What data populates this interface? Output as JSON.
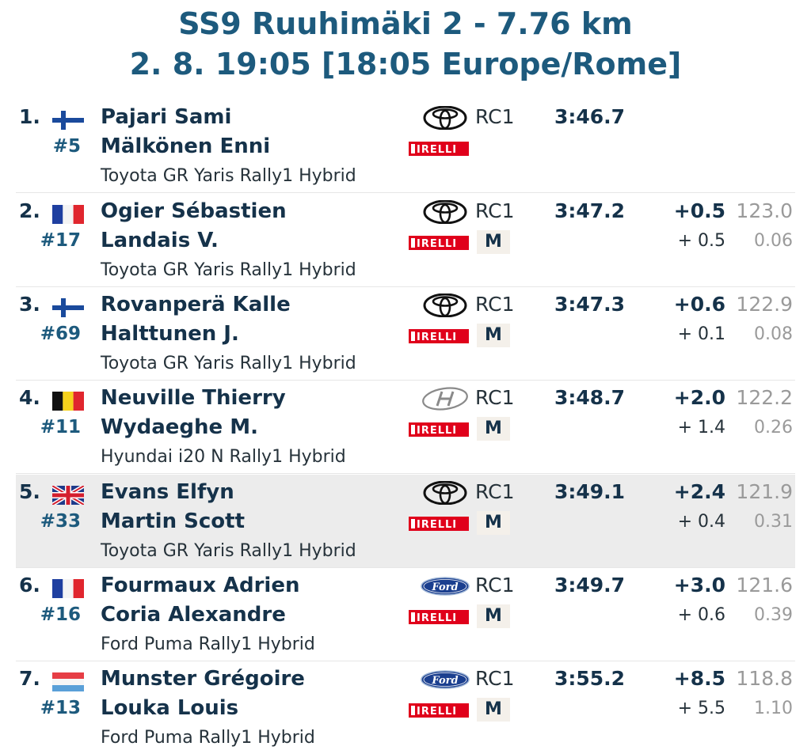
{
  "stage": {
    "title": "SS9 Ruuhimäki 2 - 7.76 km",
    "datetime": "2. 8. 19:05 [18:05 Europe/Rome]"
  },
  "brand_logos": {
    "pirelli_label": "IRELLI",
    "ford_label": "Ford"
  },
  "results": [
    {
      "pos": "1.",
      "num": "#5",
      "flag": "finland-flag",
      "driver": "Pajari Sami",
      "codriver": "Mälkönen Enni",
      "car": "Toyota GR Yaris Rally1 Hybrid",
      "make": "toyota",
      "class": "RC1",
      "tyre": "",
      "time": "3:46.7",
      "gap": "",
      "diff": "",
      "speed": "",
      "sec_per_km": ""
    },
    {
      "pos": "2.",
      "num": "#17",
      "flag": "france-flag",
      "driver": "Ogier Sébastien",
      "codriver": "Landais V.",
      "car": "Toyota GR Yaris Rally1 Hybrid",
      "make": "toyota",
      "class": "RC1",
      "tyre": "M",
      "time": "3:47.2",
      "gap": "+0.5",
      "diff": "+ 0.5",
      "speed": "123.0",
      "sec_per_km": "0.06"
    },
    {
      "pos": "3.",
      "num": "#69",
      "flag": "finland-flag",
      "driver": "Rovanperä Kalle",
      "codriver": "Halttunen J.",
      "car": "Toyota GR Yaris Rally1 Hybrid",
      "make": "toyota",
      "class": "RC1",
      "tyre": "M",
      "time": "3:47.3",
      "gap": "+0.6",
      "diff": "+ 0.1",
      "speed": "122.9",
      "sec_per_km": "0.08"
    },
    {
      "pos": "4.",
      "num": "#11",
      "flag": "belgium-flag",
      "driver": "Neuville Thierry",
      "codriver": "Wydaeghe M.",
      "car": "Hyundai i20 N Rally1 Hybrid",
      "make": "hyundai",
      "class": "RC1",
      "tyre": "M",
      "time": "3:48.7",
      "gap": "+2.0",
      "diff": "+ 1.4",
      "speed": "122.2",
      "sec_per_km": "0.26"
    },
    {
      "pos": "5.",
      "num": "#33",
      "flag": "uk-flag",
      "driver": "Evans Elfyn",
      "codriver": "Martin Scott",
      "car": "Toyota GR Yaris Rally1 Hybrid",
      "make": "toyota",
      "class": "RC1",
      "tyre": "M",
      "time": "3:49.1",
      "gap": "+2.4",
      "diff": "+ 0.4",
      "speed": "121.9",
      "sec_per_km": "0.31",
      "highlight": true
    },
    {
      "pos": "6.",
      "num": "#16",
      "flag": "france-flag",
      "driver": "Fourmaux Adrien",
      "codriver": "Coria Alexandre",
      "car": "Ford Puma Rally1 Hybrid",
      "make": "ford",
      "class": "RC1",
      "tyre": "M",
      "time": "3:49.7",
      "gap": "+3.0",
      "diff": "+ 0.6",
      "speed": "121.6",
      "sec_per_km": "0.39"
    },
    {
      "pos": "7.",
      "num": "#13",
      "flag": "luxembourg-flag",
      "driver": "Munster Grégoire",
      "codriver": "Louka Louis",
      "car": "Ford Puma Rally1 Hybrid",
      "make": "ford",
      "class": "RC1",
      "tyre": "M",
      "time": "3:55.2",
      "gap": "+8.5",
      "diff": "+ 5.5",
      "speed": "118.8",
      "sec_per_km": "1.10"
    }
  ]
}
